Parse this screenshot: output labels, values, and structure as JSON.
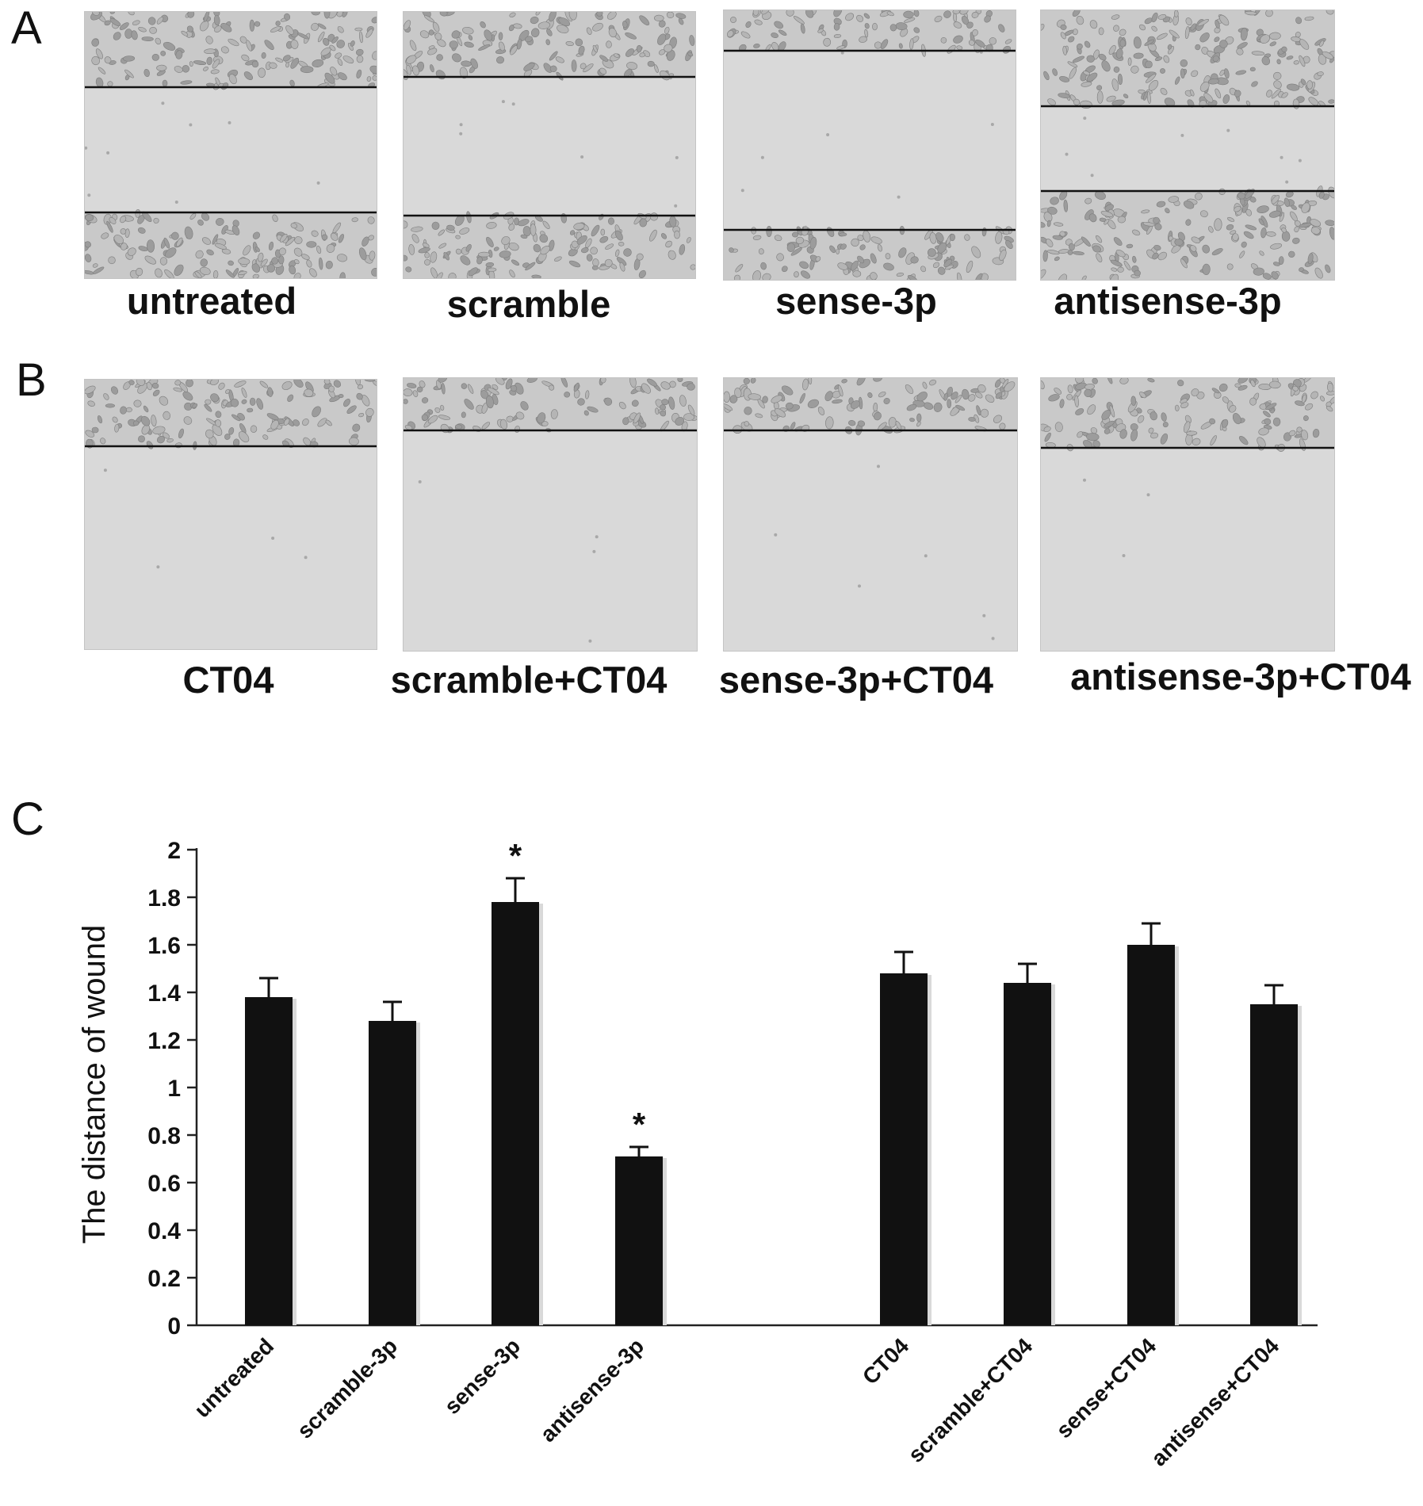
{
  "panels": {
    "a": {
      "letter": "A",
      "labels": [
        "untreated",
        "scramble",
        "sense-3p",
        "antisense-3p"
      ]
    },
    "b": {
      "letter": "B",
      "labels": [
        "CT04",
        "scramble+CT04",
        "sense-3p+CT04",
        "antisense-3p+CT04"
      ]
    },
    "c": {
      "letter": "C"
    }
  },
  "chart_data": {
    "type": "bar",
    "title": "",
    "xlabel": "",
    "ylabel": "The distance of  wound",
    "ylim": [
      0,
      2
    ],
    "yticks": [
      "0",
      "0.2",
      "0.4",
      "0.6",
      "0.8",
      "1",
      "1.2",
      "1.4",
      "1.6",
      "1.8",
      "2"
    ],
    "grid": false,
    "bar_color": "#111111",
    "groups": [
      {
        "categories": [
          "untreated",
          "scramble-3p",
          "sense-3p",
          "antisense-3p"
        ]
      },
      {
        "categories": [
          "CT04",
          "scramble+CT04",
          "sense+CT04",
          "antisense+CT04"
        ]
      }
    ],
    "categories": [
      "untreated",
      "scramble-3p",
      "sense-3p",
      "antisense-3p",
      "CT04",
      "scramble+CT04",
      "sense+CT04",
      "antisense+CT04"
    ],
    "values": [
      1.38,
      1.28,
      1.78,
      0.71,
      1.48,
      1.44,
      1.6,
      1.35
    ],
    "errors": [
      0.08,
      0.08,
      0.1,
      0.04,
      0.09,
      0.08,
      0.09,
      0.08
    ],
    "annotations": [
      "",
      "",
      "*",
      "*",
      "",
      "",
      "",
      ""
    ]
  }
}
